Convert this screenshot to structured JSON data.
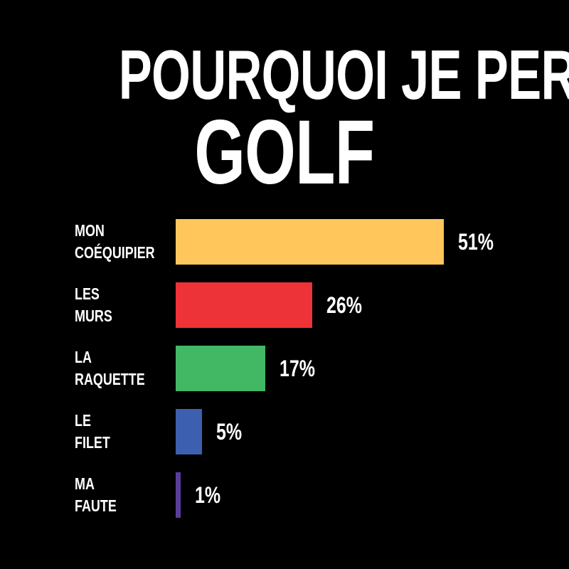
{
  "chart_data": {
    "type": "bar",
    "orientation": "horizontal",
    "title": [
      "POURQUOI JE PERDS AU",
      "GOLF"
    ],
    "categories": [
      "MON COÉQUIPIER",
      "LES MURS",
      "LA RAQUETTE",
      "LE FILET",
      "MA FAUTE"
    ],
    "values": [
      51,
      26,
      17,
      5,
      1
    ],
    "value_labels": [
      "51%",
      "26%",
      "17%",
      "5%",
      "1%"
    ],
    "colors": [
      "#fec65b",
      "#ee3338",
      "#42b864",
      "#3c5fb0",
      "#5a3d9b"
    ]
  }
}
